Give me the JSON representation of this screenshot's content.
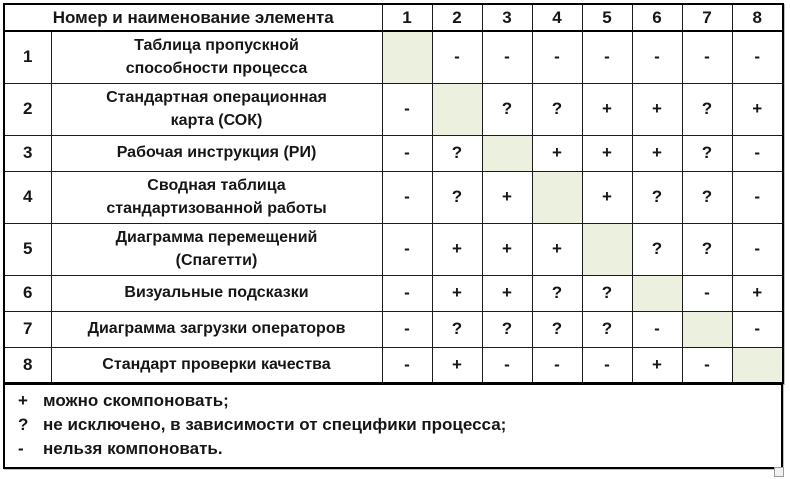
{
  "matrix": {
    "corner_header": "Номер и наименование элемента",
    "column_headers": [
      "1",
      "2",
      "3",
      "4",
      "5",
      "6",
      "7",
      "8"
    ],
    "rows": [
      {
        "num": "1",
        "name": "Таблица пропускной\nспособности процесса",
        "cells": [
          null,
          "-",
          "-",
          "-",
          "-",
          "-",
          "-",
          "-"
        ]
      },
      {
        "num": "2",
        "name": "Стандартная операционная\nкарта (СОК)",
        "cells": [
          "-",
          null,
          "?",
          "?",
          "+",
          "+",
          "?",
          "+"
        ]
      },
      {
        "num": "3",
        "name": "Рабочая инструкция (РИ)",
        "cells": [
          "-",
          "?",
          null,
          "+",
          "+",
          "+",
          "?",
          "-"
        ]
      },
      {
        "num": "4",
        "name": "Сводная таблица\nстандартизованной работы",
        "cells": [
          "-",
          "?",
          "+",
          null,
          "+",
          "?",
          "?",
          "-"
        ]
      },
      {
        "num": "5",
        "name": "Диаграмма перемещений\n(Спагетти)",
        "cells": [
          "-",
          "+",
          "+",
          "+",
          null,
          "?",
          "?",
          "-"
        ]
      },
      {
        "num": "6",
        "name": "Визуальные подсказки",
        "cells": [
          "-",
          "+",
          "+",
          "?",
          "?",
          null,
          "-",
          "+"
        ]
      },
      {
        "num": "7",
        "name": "Диаграмма загрузки операторов",
        "cells": [
          "-",
          "?",
          "?",
          "?",
          "?",
          "-",
          null,
          "-"
        ]
      },
      {
        "num": "8",
        "name": "Стандарт проверки качества",
        "cells": [
          "-",
          "+",
          "-",
          "-",
          "-",
          "+",
          "-",
          null
        ]
      }
    ],
    "diagonal_color": "#EBF1DE"
  },
  "legend": {
    "items": [
      {
        "symbol": "+",
        "text": "можно скомпоновать;"
      },
      {
        "symbol": "?",
        "text": "не исключено, в зависимости от специфики процесса;"
      },
      {
        "symbol": "-",
        "text": "нельзя компоновать."
      }
    ]
  }
}
